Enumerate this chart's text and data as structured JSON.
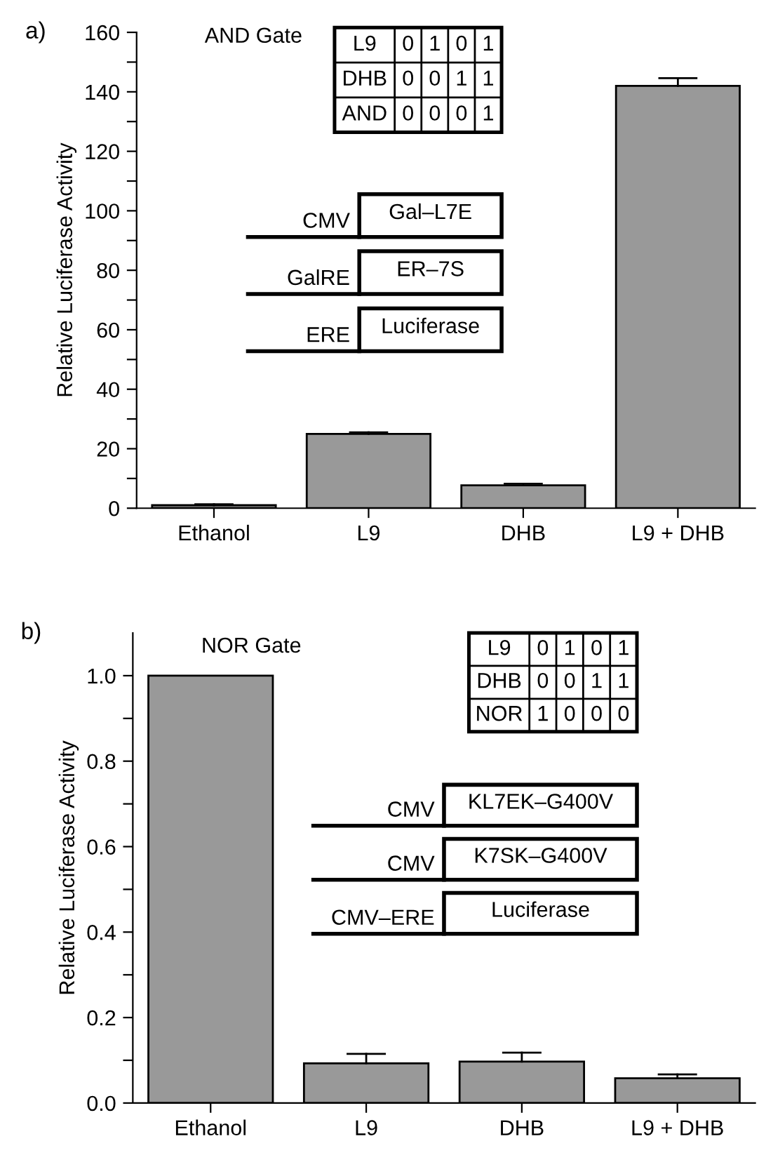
{
  "chart_data": [
    {
      "type": "bar",
      "ylabel": "Relative Luciferase Activity",
      "categories": [
        "Ethanol",
        "L9",
        "DHB",
        "L9 + DHB"
      ],
      "series": [
        {
          "color": "#999999",
          "values": [
            1,
            25,
            7.7,
            142
          ],
          "errors": [
            [
              1,
              1.3
            ],
            [
              25,
              25.5
            ],
            [
              7.7,
              8.2
            ],
            [
              142,
              144.6
            ]
          ]
        }
      ],
      "ylim": [
        0,
        160
      ],
      "yticks": [
        0,
        {
          "value": 10,
          "label": null
        },
        20,
        {
          "value": 30,
          "label": null
        },
        40,
        {
          "value": 50,
          "label": null
        },
        60,
        {
          "value": 70,
          "label": null
        },
        80,
        {
          "value": 90,
          "label": null
        },
        100,
        {
          "value": 110,
          "label": null
        },
        120,
        {
          "value": 130,
          "label": null
        },
        140,
        {
          "value": 150,
          "label": null
        },
        160
      ],
      "annotations": [
        "a)",
        "AND Gate",
        "L9",
        "0",
        "1",
        "0",
        "1",
        "DHB",
        "0",
        "0",
        "1",
        "1",
        "AND",
        "0",
        "0",
        "0",
        "1",
        "CMV",
        "Gal–L7E",
        "GalRE",
        "ER–7S",
        "ERE",
        "Luciferase"
      ]
    },
    {
      "type": "bar",
      "ylabel": "Relative Luciferase Activity",
      "categories": [
        "Ethanol",
        "L9",
        "DHB",
        "L9 + DHB"
      ],
      "series": [
        {
          "color": "#999999",
          "values": [
            1.0,
            0.093,
            0.097,
            0.058
          ],
          "errors": [
            null,
            [
              0.093,
              0.115
            ],
            [
              0.097,
              0.118
            ],
            [
              0.058,
              0.067
            ]
          ]
        }
      ],
      "ylim": [
        0,
        1.1
      ],
      "yticks": [
        {
          "value": 0,
          "label": "0.0"
        },
        {
          "value": 0.1,
          "label": null
        },
        0.2,
        {
          "value": 0.3,
          "label": null
        },
        0.4,
        {
          "value": 0.5,
          "label": null
        },
        0.6,
        {
          "value": 0.7,
          "label": null
        },
        0.8,
        {
          "value": 0.9,
          "label": null
        },
        {
          "value": 1,
          "label": "1.0"
        }
      ],
      "annotations": [
        "b)",
        "NOR Gate",
        "L9",
        "0",
        "1",
        "0",
        "1",
        "DHB",
        "0",
        "0",
        "1",
        "1",
        "NOR",
        "1",
        "0",
        "0",
        "0",
        "CMV",
        "KL7EK–G400V",
        "CMV",
        "K7SK–G400V",
        "CMV–ERE",
        "Luciferase"
      ]
    }
  ]
}
